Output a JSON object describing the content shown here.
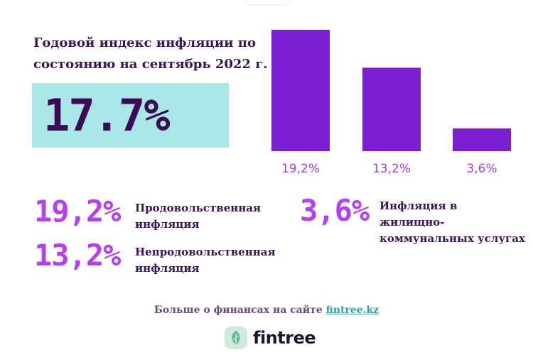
{
  "headline": "Годовой индекс инфляции по состоянию на сентябрь 2022 г.",
  "hero": {
    "value": "17.7%"
  },
  "chart_data": {
    "type": "bar",
    "categories": [
      "Продовольственная инфляция",
      "Непродовольственная инфляция",
      "Инфляция в жилищно-коммунальных услугах"
    ],
    "values": [
      19.2,
      13.2,
      3.6
    ],
    "data_labels": [
      "19,2%",
      "13,2%",
      "3,6%"
    ],
    "title": "",
    "xlabel": "",
    "ylabel": "",
    "ylim": [
      0,
      20
    ],
    "grid": false,
    "bar_color": "#7a1fd1",
    "label_color": "#a93cef"
  },
  "stats": [
    {
      "value": "19,2%",
      "label": "Продовольственная инфляция"
    },
    {
      "value": "13,2%",
      "label": "Непродовольственная инфляция"
    },
    {
      "value": "3,6%",
      "label": "Инфляция в жилищно-коммунальных услугах"
    }
  ],
  "footer": {
    "text": "Больше о финансах на сайте",
    "link": "fintree.kz"
  },
  "logo": {
    "text": "fintree",
    "icon": "leaf-icon"
  },
  "colors": {
    "headline": "#3d1459",
    "hero_bg": "#a8e6e8",
    "hero_text": "#3b0c52",
    "accent": "#b63fef",
    "link": "#2aa7a4"
  }
}
